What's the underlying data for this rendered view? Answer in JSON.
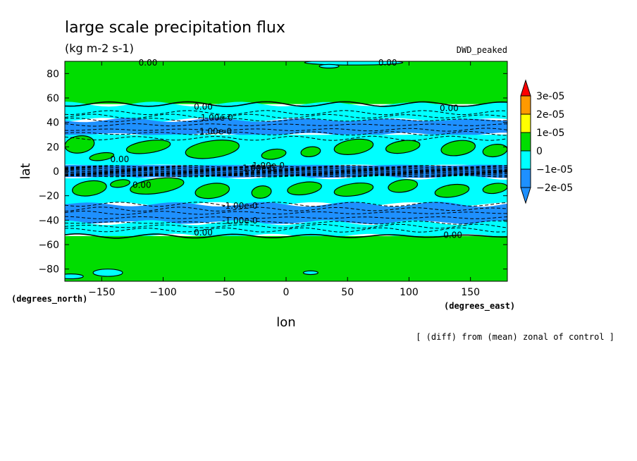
{
  "chart_data": {
    "type": "heatmap",
    "title": "large scale precipitation flux",
    "units": "(kg m-2 s-1)",
    "experiment": "DWD_peaked",
    "xlabel": "lon",
    "ylabel": "lat",
    "x_units": "(degrees_east)",
    "y_units": "(degrees_north)",
    "footnote": "[ (diff) from (mean) zonal of control ]",
    "xlim": [
      -180,
      180
    ],
    "ylim": [
      -90,
      90
    ],
    "x_ticks": [
      -150,
      -100,
      -50,
      0,
      50,
      100,
      150
    ],
    "y_ticks": [
      -80,
      -60,
      -40,
      -20,
      0,
      20,
      40,
      60,
      80
    ],
    "grid": false,
    "contour_labels": [
      "0.00",
      "-1.00e-0"
    ],
    "colorbar": {
      "placement": "right",
      "levels": [
        "3e-05",
        "2e-05",
        "1e-05",
        "0",
        "-1e-05",
        "-2e-05"
      ],
      "colors": [
        "#ff0000",
        "#ff9900",
        "#ffff00",
        "#00dd00",
        "#00ffff",
        "#1e90ff",
        "#1e90ff"
      ]
    },
    "zonal_bands": [
      {
        "lat_range": [
          55,
          90
        ],
        "value_range": "0 to 1e-05",
        "color": "#00dd00"
      },
      {
        "lat_range": [
          42,
          55
        ],
        "value_range": "-1e-05 to 0",
        "color": "#00ffff"
      },
      {
        "lat_range": [
          30,
          42
        ],
        "value_range": "-2e-05 to -1e-05",
        "color": "#1e90ff"
      },
      {
        "lat_range": [
          5,
          30
        ],
        "value_range": "-1e-05 to 1e-05",
        "color": "#00ffff"
      },
      {
        "lat_range": [
          -5,
          5
        ],
        "value_range": "< -2e-05",
        "color": "#1e90ff"
      },
      {
        "lat_range": [
          -27,
          -5
        ],
        "value_range": "-1e-05 to 1e-05",
        "color": "#00ffff"
      },
      {
        "lat_range": [
          -42,
          -27
        ],
        "value_range": "-2e-05 to -1e-05",
        "color": "#1e90ff"
      },
      {
        "lat_range": [
          -53,
          -42
        ],
        "value_range": "-1e-05 to 0",
        "color": "#00ffff"
      },
      {
        "lat_range": [
          -90,
          -53
        ],
        "value_range": "0 to 1e-05",
        "color": "#00dd00"
      }
    ],
    "colors": {
      "green": "#00dd00",
      "cyan": "#00ffff",
      "blue": "#1e90ff",
      "yellow": "#ffff00",
      "orange": "#ff9900",
      "red": "#ff0000"
    }
  }
}
